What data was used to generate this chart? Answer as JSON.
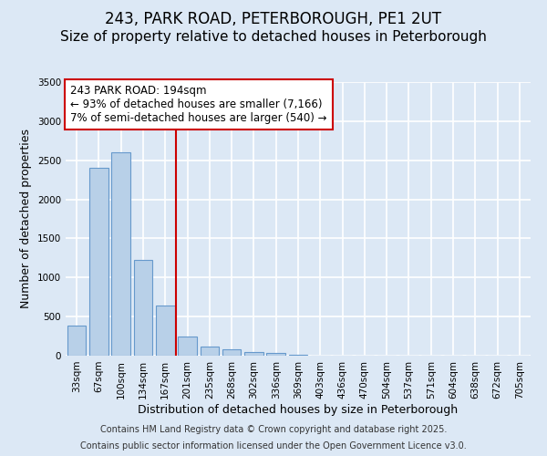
{
  "title1": "243, PARK ROAD, PETERBOROUGH, PE1 2UT",
  "title2": "Size of property relative to detached houses in Peterborough",
  "xlabel": "Distribution of detached houses by size in Peterborough",
  "ylabel": "Number of detached properties",
  "categories": [
    "33sqm",
    "67sqm",
    "100sqm",
    "134sqm",
    "167sqm",
    "201sqm",
    "235sqm",
    "268sqm",
    "302sqm",
    "336sqm",
    "369sqm",
    "403sqm",
    "436sqm",
    "470sqm",
    "504sqm",
    "537sqm",
    "571sqm",
    "604sqm",
    "638sqm",
    "672sqm",
    "705sqm"
  ],
  "values": [
    380,
    2400,
    2600,
    1230,
    640,
    240,
    120,
    80,
    50,
    30,
    10,
    0,
    0,
    0,
    0,
    0,
    0,
    0,
    0,
    0,
    0
  ],
  "bar_color": "#b8d0e8",
  "bar_edge_color": "#6699cc",
  "vline_color": "#cc0000",
  "box_color": "#cc0000",
  "annotation_line1": "243 PARK ROAD: 194sqm",
  "annotation_line2": "← 93% of detached houses are smaller (7,166)",
  "annotation_line3": "7% of semi-detached houses are larger (540) →",
  "ylim": [
    0,
    3500
  ],
  "yticks": [
    0,
    500,
    1000,
    1500,
    2000,
    2500,
    3000,
    3500
  ],
  "footer1": "Contains HM Land Registry data © Crown copyright and database right 2025.",
  "footer2": "Contains public sector information licensed under the Open Government Licence v3.0.",
  "background_color": "#dce8f5",
  "plot_background": "#dce8f5",
  "grid_color": "#ffffff",
  "title_fontsize": 12,
  "subtitle_fontsize": 11,
  "axis_label_fontsize": 9,
  "tick_fontsize": 7.5,
  "annotation_fontsize": 8.5,
  "footer_fontsize": 7
}
